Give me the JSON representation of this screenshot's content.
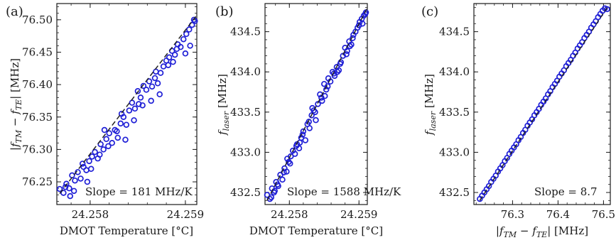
{
  "figure": {
    "style": {
      "marker_color": "#1f1fd6",
      "fit_line_color": "#222222",
      "axis_color": "#1a1a1a",
      "background": "#ffffff"
    }
  },
  "chart_data": [
    {
      "panel": "(a)",
      "type": "scatter",
      "xlabel": "DMOT Temperature [°C]",
      "ylabel": "|f_TM − f_TE| [MHz]",
      "xlim": [
        24.25765,
        24.25912
      ],
      "ylim": [
        76.215,
        76.525
      ],
      "xticks": [
        24.258,
        24.259
      ],
      "xtick_labels": [
        "24.258",
        "24.259"
      ],
      "yticks": [
        76.25,
        76.3,
        76.35,
        76.4,
        76.45,
        76.5
      ],
      "ytick_labels": [
        "76.25",
        "76.30",
        "76.35",
        "76.40",
        "76.45",
        "76.50"
      ],
      "annotation": "Slope = 181 MHz/K",
      "fit_line": {
        "x": [
          24.25768,
          24.25911
        ],
        "y": [
          76.232,
          76.505
        ]
      },
      "series": [
        {
          "x": [
            24.25768,
            24.25772,
            24.25775,
            24.25778,
            24.25781,
            24.25784,
            24.25787,
            24.2579,
            24.25793,
            24.25796,
            24.25799,
            24.25802,
            24.25805,
            24.25808,
            24.25811,
            24.25814,
            24.25817,
            24.2582,
            24.25823,
            24.25826,
            24.25829,
            24.25832,
            24.25835,
            24.25838,
            24.25841,
            24.25844,
            24.25847,
            24.2585,
            24.25853,
            24.25856,
            24.25859,
            24.25862,
            24.25865,
            24.25868,
            24.25871,
            24.25874,
            24.25877,
            24.2588,
            24.25883,
            24.25886,
            24.25889,
            24.25892,
            24.25895,
            24.25898,
            24.25901,
            24.25904,
            24.25907,
            24.2591,
            24.25774,
            24.25783,
            24.25792,
            24.25801,
            24.2581,
            24.25819,
            24.25828,
            24.25837,
            24.25846,
            24.25855,
            24.25864,
            24.25873,
            24.25882,
            24.25891,
            24.259,
            24.25909,
            24.25779,
            24.25797,
            24.25815,
            24.25833,
            24.25851,
            24.25869,
            24.25887,
            24.25905
          ],
          "y": [
            76.239,
            76.233,
            76.247,
            76.24,
            76.26,
            76.252,
            76.265,
            76.255,
            76.273,
            76.268,
            76.282,
            76.289,
            76.296,
            76.286,
            76.308,
            76.3,
            76.316,
            76.325,
            76.31,
            76.33,
            76.318,
            76.34,
            76.35,
            76.338,
            76.36,
            76.372,
            76.363,
            76.39,
            76.38,
            76.398,
            76.392,
            76.405,
            76.397,
            76.41,
            76.402,
            76.418,
            76.428,
            76.437,
            76.442,
            76.452,
            76.446,
            76.462,
            76.458,
            76.47,
            76.478,
            76.485,
            76.492,
            76.498,
            76.242,
            76.236,
            76.278,
            76.27,
            76.292,
            76.305,
            76.328,
            76.315,
            76.345,
            76.368,
            76.375,
            76.385,
            76.43,
            76.455,
            76.448,
            76.5,
            76.228,
            76.25,
            76.33,
            76.355,
            76.37,
            76.42,
            76.435,
            76.46
          ]
        }
      ]
    },
    {
      "panel": "(b)",
      "type": "scatter",
      "xlabel": "DMOT Temperature [°C]",
      "ylabel": "f_laser [MHz]",
      "xlim": [
        24.25765,
        24.25912
      ],
      "ylim": [
        432.35,
        434.85
      ],
      "xticks": [
        24.258,
        24.259
      ],
      "xtick_labels": [
        "24.258",
        "24.259"
      ],
      "yticks": [
        432.5,
        433.0,
        433.5,
        434.0,
        434.5
      ],
      "ytick_labels": [
        "432.5",
        "433.0",
        "433.5",
        "434.0",
        "434.5"
      ],
      "annotation": "Slope = 1588 MHz/K",
      "fit_line": {
        "x": [
          24.25768,
          24.25911
        ],
        "y": [
          432.4,
          434.78
        ]
      },
      "series": [
        {
          "x": [
            24.25768,
            24.25772,
            24.25775,
            24.25778,
            24.25781,
            24.25784,
            24.25787,
            24.2579,
            24.25793,
            24.25796,
            24.25799,
            24.25802,
            24.25805,
            24.25808,
            24.25811,
            24.25814,
            24.25817,
            24.2582,
            24.25823,
            24.25826,
            24.25829,
            24.25832,
            24.25835,
            24.25838,
            24.25841,
            24.25844,
            24.25847,
            24.2585,
            24.25853,
            24.25856,
            24.25859,
            24.25862,
            24.25865,
            24.25868,
            24.25871,
            24.25874,
            24.25877,
            24.2588,
            24.25883,
            24.25886,
            24.25889,
            24.25892,
            24.25895,
            24.25898,
            24.25901,
            24.25904,
            24.25907,
            24.2591,
            24.25774,
            24.25783,
            24.25792,
            24.25801,
            24.2581,
            24.25819,
            24.25828,
            24.25837,
            24.25846,
            24.25855,
            24.25864,
            24.25873,
            24.25882,
            24.25891,
            24.259,
            24.25909,
            24.25779,
            24.25797,
            24.25815,
            24.25833,
            24.25851,
            24.25869,
            24.25887,
            24.25905
          ],
          "y": [
            432.47,
            432.42,
            432.55,
            432.5,
            432.63,
            432.58,
            432.72,
            432.66,
            432.8,
            432.76,
            432.88,
            432.95,
            433.02,
            432.98,
            433.1,
            433.05,
            433.18,
            433.26,
            433.15,
            433.35,
            433.3,
            433.46,
            433.52,
            433.4,
            433.6,
            433.72,
            433.64,
            433.85,
            433.78,
            433.92,
            433.88,
            434.0,
            433.95,
            434.06,
            434.02,
            434.12,
            434.2,
            434.3,
            434.26,
            434.38,
            434.34,
            434.46,
            434.5,
            434.55,
            434.62,
            434.66,
            434.7,
            434.74,
            432.44,
            432.6,
            432.75,
            432.86,
            433.08,
            433.22,
            433.38,
            433.5,
            433.68,
            433.82,
            433.98,
            434.1,
            434.22,
            434.42,
            434.58,
            434.72,
            432.52,
            432.92,
            433.12,
            433.55,
            433.7,
            434.0,
            434.32,
            434.6
          ]
        }
      ]
    },
    {
      "panel": "(c)",
      "type": "scatter",
      "xlabel": "|f_TM − f_TE| [MHz]",
      "ylabel": "f_laser [MHz]",
      "xlim": [
        76.215,
        76.515
      ],
      "ylim": [
        432.35,
        434.85
      ],
      "xticks": [
        76.3,
        76.4,
        76.5
      ],
      "xtick_labels": [
        "76.3",
        "76.4",
        "76.5"
      ],
      "yticks": [
        432.5,
        433.0,
        433.5,
        434.0,
        434.5
      ],
      "ytick_labels": [
        "432.5",
        "433.0",
        "433.5",
        "434.0",
        "434.5"
      ],
      "annotation": "Slope =  8.7",
      "fit_line": {
        "x": [
          76.228,
          76.508
        ],
        "y": [
          432.4,
          434.8
        ]
      },
      "series": [
        {
          "x": [
            76.228,
            76.233,
            76.238,
            76.243,
            76.248,
            76.253,
            76.258,
            76.263,
            76.268,
            76.273,
            76.278,
            76.283,
            76.288,
            76.293,
            76.298,
            76.303,
            76.308,
            76.313,
            76.318,
            76.323,
            76.328,
            76.333,
            76.338,
            76.343,
            76.348,
            76.353,
            76.358,
            76.363,
            76.368,
            76.373,
            76.378,
            76.383,
            76.388,
            76.393,
            76.398,
            76.403,
            76.408,
            76.413,
            76.418,
            76.423,
            76.428,
            76.433,
            76.438,
            76.443,
            76.448,
            76.453,
            76.458,
            76.463,
            76.468,
            76.473,
            76.478,
            76.483,
            76.488,
            76.493,
            76.498,
            76.503,
            76.508
          ],
          "y": [
            432.42,
            432.46,
            432.5,
            432.54,
            432.58,
            432.63,
            432.67,
            432.71,
            432.76,
            432.8,
            432.84,
            432.89,
            432.93,
            432.98,
            433.02,
            433.06,
            433.1,
            433.15,
            433.19,
            433.24,
            433.28,
            433.33,
            433.37,
            433.41,
            433.46,
            433.5,
            433.54,
            433.59,
            433.63,
            433.67,
            433.72,
            433.76,
            433.81,
            433.85,
            433.89,
            433.94,
            433.98,
            434.02,
            434.07,
            434.11,
            434.15,
            434.2,
            434.24,
            434.29,
            434.33,
            434.37,
            434.42,
            434.46,
            434.5,
            434.55,
            434.59,
            434.63,
            434.68,
            434.72,
            434.76,
            434.79,
            434.78
          ]
        }
      ]
    }
  ]
}
